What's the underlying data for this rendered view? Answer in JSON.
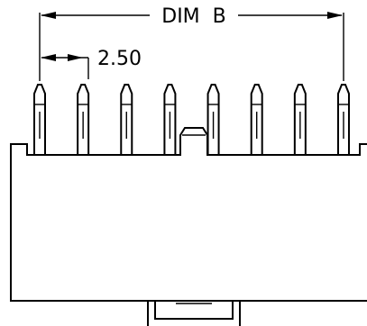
{
  "labels": {
    "dim_b": "DIM  B",
    "pitch": "2.50"
  },
  "connector": {
    "pin_count": 8
  },
  "colors": {
    "stroke": "#000000",
    "background": "#ffffff"
  }
}
